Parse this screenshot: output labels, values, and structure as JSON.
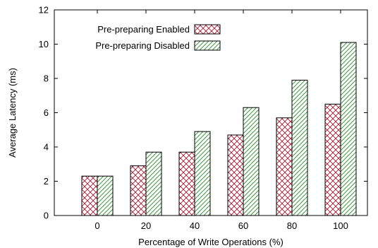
{
  "chart_data": {
    "type": "bar",
    "categories": [
      "0",
      "20",
      "40",
      "60",
      "80",
      "100"
    ],
    "series": [
      {
        "name": "Pre-preparing Enabled",
        "values": [
          2.3,
          2.9,
          3.7,
          4.7,
          5.7,
          6.5
        ],
        "color": "#b0142e",
        "pattern": "crosshatch"
      },
      {
        "name": "Pre-preparing Disabled",
        "values": [
          2.3,
          3.7,
          4.9,
          6.3,
          7.9,
          10.1
        ],
        "color": "#2a8a2a",
        "pattern": "diagonal"
      }
    ],
    "xlabel": "Percentage of Write Operations (%)",
    "ylabel": "Average Latency (ms)",
    "ylim": [
      0,
      12
    ],
    "yticks": [
      0,
      2,
      4,
      6,
      8,
      10,
      12
    ],
    "grid": false,
    "legend_position": "top-left"
  }
}
